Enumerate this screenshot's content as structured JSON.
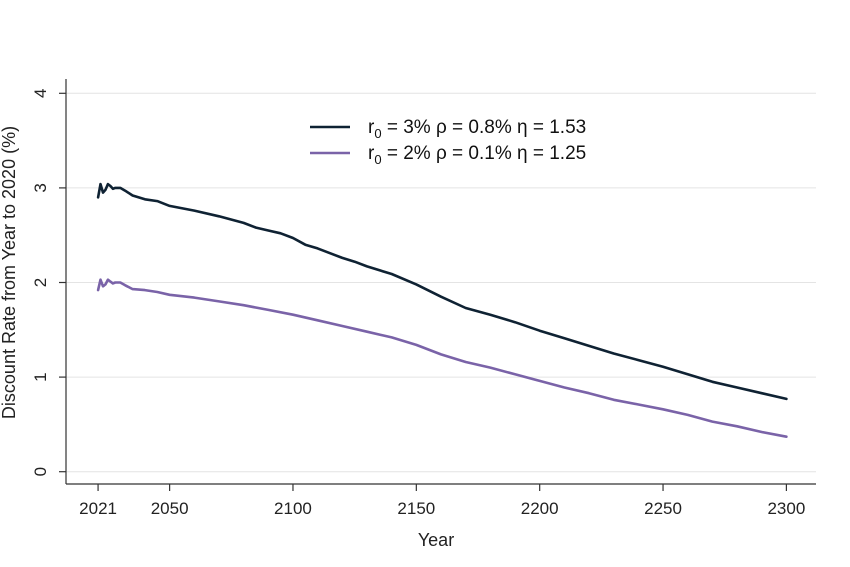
{
  "chart_data": {
    "type": "line",
    "title": "",
    "xlabel": "Year",
    "ylabel": "Discount Rate from Year to 2020 (%)",
    "xlim": [
      2008,
      2312
    ],
    "ylim": [
      -0.13,
      4.13
    ],
    "xticks": [
      2021,
      2050,
      2100,
      2150,
      2200,
      2250,
      2300
    ],
    "xtick_labels": [
      "2021",
      "2050",
      "2100",
      "2150",
      "2200",
      "2250",
      "2300"
    ],
    "yticks": [
      0,
      1,
      2,
      3,
      4
    ],
    "ytick_labels": [
      "0",
      "1",
      "2",
      "3",
      "4"
    ],
    "grid": "horizontal",
    "legend_position": "top-center",
    "series": [
      {
        "name": "r0 = 3%    ρ = 0.8%    η = 1.53",
        "legend": {
          "r": "r",
          "sub": "0",
          "rest": " = 3%    ρ = 0.8%    η = 1.53"
        },
        "color": "#0f2233",
        "x": [
          2021,
          2022,
          2023,
          2024,
          2025,
          2026,
          2027,
          2028,
          2030,
          2032,
          2035,
          2040,
          2045,
          2050,
          2060,
          2070,
          2080,
          2085,
          2090,
          2095,
          2100,
          2105,
          2110,
          2115,
          2120,
          2125,
          2130,
          2140,
          2150,
          2160,
          2170,
          2180,
          2190,
          2200,
          2210,
          2220,
          2230,
          2240,
          2250,
          2260,
          2270,
          2280,
          2290,
          2300
        ],
        "y": [
          2.9,
          3.04,
          2.95,
          2.98,
          3.04,
          3.02,
          2.99,
          3.0,
          3.0,
          2.97,
          2.92,
          2.88,
          2.86,
          2.81,
          2.76,
          2.7,
          2.63,
          2.58,
          2.55,
          2.52,
          2.47,
          2.4,
          2.36,
          2.31,
          2.26,
          2.22,
          2.17,
          2.09,
          1.98,
          1.85,
          1.73,
          1.66,
          1.58,
          1.49,
          1.41,
          1.33,
          1.25,
          1.18,
          1.11,
          1.03,
          0.95,
          0.89,
          0.83,
          0.77
        ]
      },
      {
        "name": "r0 = 2%    ρ = 0.1%    η = 1.25",
        "legend": {
          "r": "r",
          "sub": "0",
          "rest": " = 2%    ρ = 0.1%    η = 1.25"
        },
        "color": "#7a63a8",
        "x": [
          2021,
          2022,
          2023,
          2024,
          2025,
          2026,
          2027,
          2028,
          2030,
          2032,
          2035,
          2040,
          2045,
          2050,
          2060,
          2070,
          2080,
          2090,
          2100,
          2110,
          2120,
          2130,
          2140,
          2150,
          2160,
          2170,
          2180,
          2190,
          2200,
          2210,
          2220,
          2230,
          2240,
          2250,
          2260,
          2270,
          2280,
          2290,
          2300
        ],
        "y": [
          1.92,
          2.03,
          1.96,
          1.98,
          2.03,
          2.01,
          1.99,
          2.0,
          2.0,
          1.97,
          1.93,
          1.92,
          1.9,
          1.87,
          1.84,
          1.8,
          1.76,
          1.71,
          1.66,
          1.6,
          1.54,
          1.48,
          1.42,
          1.34,
          1.24,
          1.16,
          1.1,
          1.03,
          0.96,
          0.89,
          0.83,
          0.76,
          0.71,
          0.66,
          0.6,
          0.53,
          0.48,
          0.42,
          0.37
        ]
      }
    ]
  }
}
